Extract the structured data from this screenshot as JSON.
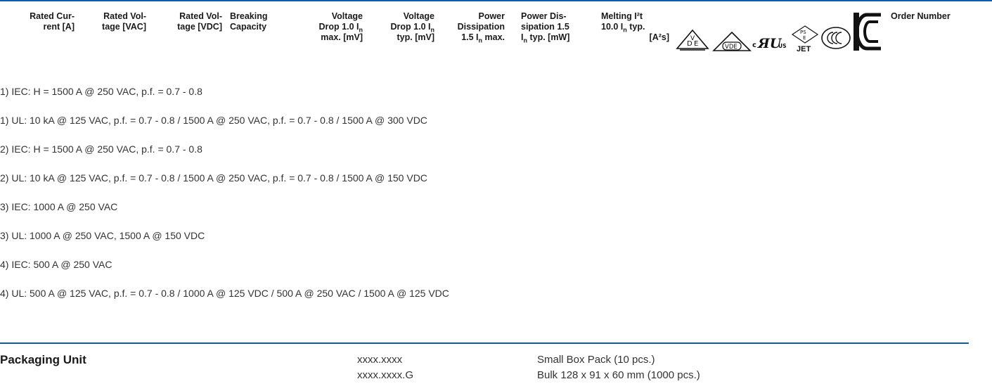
{
  "header": {
    "rated_current": [
      "Rated Cur-",
      "rent [A]"
    ],
    "rated_voltage_vac": [
      "Rated Vol-",
      "tage [VAC]"
    ],
    "rated_voltage_vdc": [
      "Rated Vol-",
      "tage [VDC]"
    ],
    "breaking_capacity": [
      "Breaking",
      "Capacity"
    ],
    "voltage_drop_max": {
      "l1": "Voltage",
      "l2a": "Drop 1.0 I",
      "l2sub": "n",
      "l3": "max. [mV]"
    },
    "voltage_drop_typ": {
      "l1": "Voltage",
      "l2a": "Drop 1.0 I",
      "l2sub": "n",
      "l3": "typ. [mV]"
    },
    "power_dissipation_max": {
      "l1": "Power",
      "l2": "Dissipation",
      "l3a": "1.5 I",
      "l3sub": "n",
      "l3b": " max."
    },
    "power_dissipation_typ": {
      "l1": "Power Dis-",
      "l2": "sipation 1.5",
      "l3a": "I",
      "l3sub": "n",
      "l3b": " typ. [mW]"
    },
    "melting": {
      "l1": "Melting I²t",
      "l2a": "10.0 I",
      "l2sub": "n",
      "l2b": " typ.",
      "l3": "[A²s]"
    },
    "order_number": "Order Number",
    "logos": {
      "vde_small": "VDE",
      "vde_large": "VDE",
      "ul_c": "c",
      "ul_us": "US",
      "pse_top": "PS",
      "pse_bottom": "E",
      "jet": "JET",
      "ccc": "CCC"
    }
  },
  "notes": [
    "1) IEC: H = 1500 A @ 250 VAC, p.f. = 0.7 - 0.8",
    "1) UL: 10 kA @ 125 VAC, p.f. = 0.7 - 0.8 / 1500 A @ 250 VAC, p.f. = 0.7 - 0.8 / 1500 A @ 300 VDC",
    "2) IEC: H = 1500 A @ 250 VAC, p.f. = 0.7 - 0.8",
    "2) UL: 10 kA @ 125 VAC, p.f. = 0.7 - 0.8 / 1500 A @ 250 VAC, p.f. = 0.7 - 0.8 / 1500 A @ 150 VDC",
    "3) IEC: 1000 A @ 250 VAC",
    "3) UL: 1000 A @ 250 VAC, 1500 A @ 150 VDC",
    "4) IEC: 500 A @ 250 VAC",
    "4) UL: 500 A @ 125 VAC, p.f. = 0.7 - 0.8 / 1000 A @ 125 VDC / 500 A @ 250 VAC / 1500 A @ 125 VDC"
  ],
  "packaging": {
    "title": "Packaging Unit",
    "rows": [
      {
        "code": "xxxx.xxxx",
        "desc": "Small Box Pack (10 pcs.)"
      },
      {
        "code": "xxxx.xxxx.G",
        "desc": "Bulk 128 x 91 x 60 mm (1000 pcs.)"
      }
    ]
  },
  "colors": {
    "rule": "#0d5ea8"
  }
}
